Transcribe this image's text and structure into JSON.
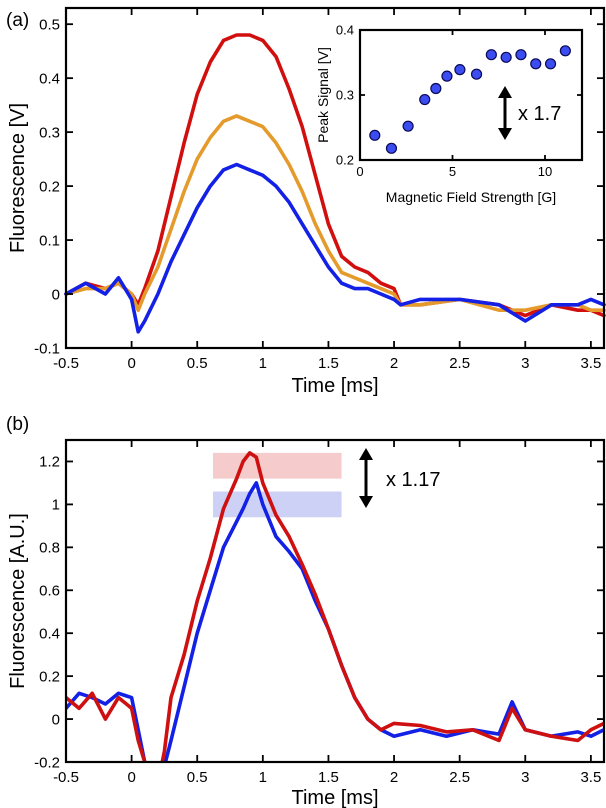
{
  "chart_data": [
    {
      "panel_label": "(a)",
      "type": "line",
      "xlabel": "Time [ms]",
      "ylabel": "Fluorescence [V]",
      "xlim": [
        -0.5,
        3.6
      ],
      "ylim": [
        -0.1,
        0.53
      ],
      "xticks": [
        "-0.5",
        "0",
        "0.5",
        "1",
        "1.5",
        "2",
        "2.5",
        "3",
        "3.5"
      ],
      "yticks": [
        "-0.1",
        "0",
        "0.1",
        "0.2",
        "0.3",
        "0.4",
        "0.5"
      ],
      "series": [
        {
          "color": "#d10f0f",
          "x": [
            -0.5,
            -0.35,
            -0.2,
            -0.1,
            0,
            0.05,
            0.1,
            0.2,
            0.3,
            0.4,
            0.5,
            0.6,
            0.7,
            0.8,
            0.9,
            1.0,
            1.1,
            1.2,
            1.3,
            1.4,
            1.5,
            1.6,
            1.7,
            1.8,
            1.9,
            2.0,
            2.05,
            2.2,
            2.5,
            2.8,
            3.0,
            3.2,
            3.4,
            3.5,
            3.6
          ],
          "y": [
            0.0,
            0.02,
            0.01,
            0.02,
            0.0,
            -0.02,
            0.01,
            0.08,
            0.18,
            0.28,
            0.37,
            0.43,
            0.47,
            0.48,
            0.48,
            0.47,
            0.44,
            0.38,
            0.31,
            0.22,
            0.13,
            0.07,
            0.05,
            0.04,
            0.02,
            0.01,
            -0.02,
            -0.02,
            -0.01,
            -0.02,
            -0.04,
            -0.02,
            -0.03,
            -0.03,
            -0.04
          ]
        },
        {
          "color": "#e49b2c",
          "x": [
            -0.5,
            -0.35,
            -0.2,
            -0.1,
            0,
            0.05,
            0.1,
            0.2,
            0.3,
            0.4,
            0.5,
            0.6,
            0.7,
            0.8,
            0.9,
            1.0,
            1.1,
            1.2,
            1.3,
            1.4,
            1.5,
            1.6,
            1.7,
            1.8,
            1.9,
            2.0,
            2.05,
            2.2,
            2.5,
            2.8,
            3.0,
            3.2,
            3.4,
            3.5,
            3.6
          ],
          "y": [
            0.0,
            0.01,
            0.01,
            0.02,
            0.0,
            -0.03,
            0.0,
            0.05,
            0.12,
            0.19,
            0.25,
            0.29,
            0.32,
            0.33,
            0.32,
            0.31,
            0.28,
            0.24,
            0.19,
            0.13,
            0.08,
            0.04,
            0.03,
            0.02,
            0.01,
            0.0,
            -0.02,
            -0.02,
            -0.01,
            -0.03,
            -0.03,
            -0.02,
            -0.02,
            -0.03,
            -0.03
          ]
        },
        {
          "color": "#1320e6",
          "x": [
            -0.5,
            -0.35,
            -0.2,
            -0.1,
            0,
            0.05,
            0.1,
            0.2,
            0.3,
            0.4,
            0.5,
            0.6,
            0.7,
            0.8,
            0.9,
            1.0,
            1.1,
            1.2,
            1.3,
            1.4,
            1.5,
            1.6,
            1.7,
            1.8,
            1.9,
            2.0,
            2.05,
            2.2,
            2.5,
            2.8,
            3.0,
            3.2,
            3.4,
            3.5,
            3.6
          ],
          "y": [
            0.0,
            0.02,
            0.0,
            0.03,
            -0.01,
            -0.07,
            -0.05,
            0.0,
            0.06,
            0.11,
            0.16,
            0.2,
            0.23,
            0.24,
            0.23,
            0.22,
            0.2,
            0.17,
            0.13,
            0.09,
            0.05,
            0.02,
            0.01,
            0.01,
            0.0,
            -0.01,
            -0.02,
            -0.01,
            -0.01,
            -0.02,
            -0.05,
            -0.02,
            -0.02,
            -0.01,
            -0.02
          ]
        }
      ]
    },
    {
      "panel_label": "",
      "type": "scatter",
      "xlabel": "Magnetic Field Strength [G]",
      "ylabel": "Peak Signal [V]",
      "xlim": [
        0,
        12
      ],
      "ylim": [
        0.2,
        0.4
      ],
      "xticks": [
        "0",
        "5",
        "10"
      ],
      "yticks": [
        "0.2",
        "0.3",
        "0.4"
      ],
      "x": [
        0.8,
        1.7,
        2.6,
        3.5,
        4.1,
        4.7,
        5.4,
        6.3,
        7.1,
        7.9,
        8.7,
        9.5,
        10.3,
        11.1
      ],
      "y": [
        0.238,
        0.218,
        0.252,
        0.293,
        0.31,
        0.329,
        0.339,
        0.332,
        0.362,
        0.358,
        0.362,
        0.348,
        0.348,
        0.368
      ],
      "marker_color": "#3b4cf0",
      "annotation": "x 1.7"
    },
    {
      "panel_label": "(b)",
      "type": "line",
      "xlabel": "Time [ms]",
      "ylabel": "Fluorescence [A.U.]",
      "xlim": [
        -0.5,
        3.6
      ],
      "ylim": [
        -0.2,
        1.3
      ],
      "xticks": [
        "-0.5",
        "0",
        "0.5",
        "1",
        "1.5",
        "2",
        "2.5",
        "3",
        "3.5"
      ],
      "yticks": [
        "-0.2",
        "0",
        "0.2",
        "0.4",
        "0.6",
        "0.8",
        "1",
        "1.2"
      ],
      "series": [
        {
          "color": "#1320e6",
          "x": [
            -0.5,
            -0.4,
            -0.3,
            -0.2,
            -0.1,
            0.0,
            0.05,
            0.1,
            0.15,
            0.2,
            0.25,
            0.3,
            0.4,
            0.5,
            0.6,
            0.7,
            0.8,
            0.85,
            0.9,
            0.95,
            1.0,
            1.1,
            1.2,
            1.3,
            1.4,
            1.5,
            1.6,
            1.7,
            1.8,
            1.9,
            2.0,
            2.2,
            2.4,
            2.6,
            2.8,
            2.9,
            3.0,
            3.2,
            3.4,
            3.5,
            3.6
          ],
          "y": [
            0.05,
            0.12,
            0.1,
            0.07,
            0.12,
            0.1,
            -0.05,
            -0.2,
            -0.3,
            -0.3,
            -0.22,
            -0.1,
            0.15,
            0.4,
            0.6,
            0.8,
            0.92,
            0.98,
            1.05,
            1.1,
            1.0,
            0.85,
            0.78,
            0.7,
            0.55,
            0.42,
            0.25,
            0.1,
            0.0,
            -0.05,
            -0.08,
            -0.05,
            -0.08,
            -0.05,
            -0.07,
            0.08,
            -0.05,
            -0.08,
            -0.06,
            -0.08,
            -0.05
          ]
        },
        {
          "color": "#cf1010",
          "x": [
            -0.5,
            -0.4,
            -0.3,
            -0.2,
            -0.1,
            0.0,
            0.05,
            0.1,
            0.15,
            0.2,
            0.25,
            0.3,
            0.4,
            0.5,
            0.6,
            0.7,
            0.8,
            0.85,
            0.9,
            0.95,
            1.0,
            1.1,
            1.2,
            1.3,
            1.4,
            1.5,
            1.6,
            1.7,
            1.8,
            1.9,
            2.0,
            2.2,
            2.4,
            2.6,
            2.8,
            2.9,
            3.0,
            3.2,
            3.4,
            3.5,
            3.6
          ],
          "y": [
            0.1,
            0.05,
            0.12,
            0.0,
            0.1,
            0.05,
            -0.1,
            -0.2,
            -0.3,
            -0.3,
            -0.15,
            0.1,
            0.3,
            0.55,
            0.75,
            0.98,
            1.12,
            1.2,
            1.24,
            1.22,
            1.1,
            0.95,
            0.85,
            0.72,
            0.58,
            0.42,
            0.25,
            0.1,
            0.0,
            -0.05,
            -0.02,
            -0.03,
            -0.06,
            -0.05,
            -0.1,
            0.05,
            -0.05,
            -0.08,
            -0.1,
            -0.05,
            -0.02
          ]
        }
      ],
      "bands": [
        {
          "color": "#f3c2c2",
          "x_start": 0.62,
          "x_end": 1.6,
          "y_low": 1.12,
          "y_high": 1.24
        },
        {
          "color": "#c6c9f4",
          "x_start": 0.62,
          "x_end": 1.6,
          "y_low": 0.94,
          "y_high": 1.06
        }
      ],
      "annotation": "x 1.17"
    }
  ]
}
